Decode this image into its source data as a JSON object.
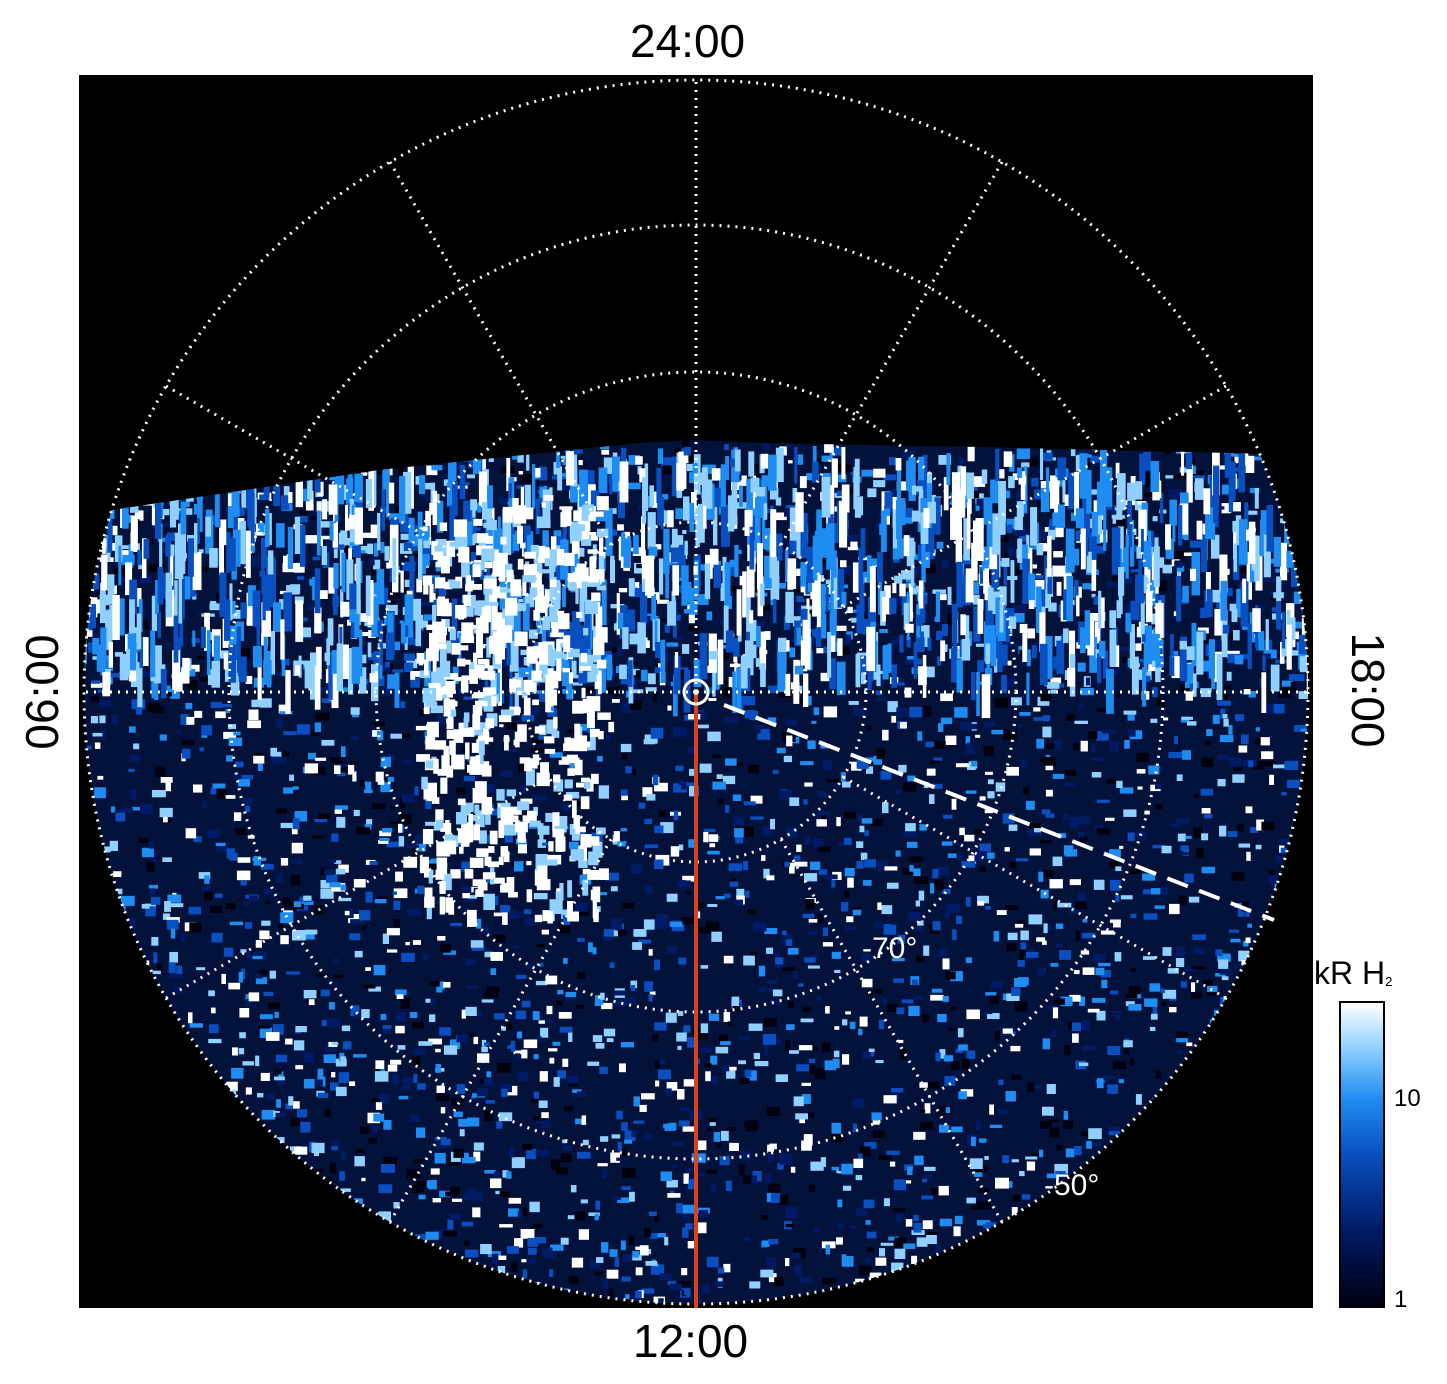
{
  "plot": {
    "local_time_labels": {
      "top": "24:00",
      "bottom": "12:00",
      "left": "06:00",
      "right": "18:00"
    },
    "latitude_labels": {
      "inner": "-70°",
      "outer": "-50°"
    }
  },
  "colorbar": {
    "title_main": "kR H",
    "title_sub": "2",
    "tick_labels": [
      "10",
      "1"
    ],
    "colors": [
      "#000010",
      "#001a66",
      "#0a4fc0",
      "#1e8cf0",
      "#8fd0ff",
      "#ffffff"
    ]
  },
  "colors": {
    "background": "#000000",
    "grid": "#ffffff",
    "meridian_line": "#d9401c"
  }
}
